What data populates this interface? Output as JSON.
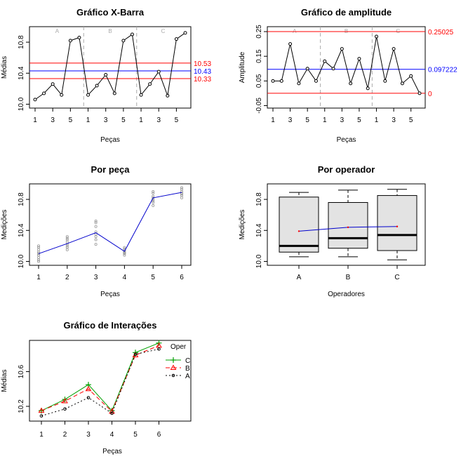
{
  "chart_data": [
    {
      "id": "xbar",
      "type": "line",
      "title": "Gráfico X-Barra",
      "xlabel": "Peças",
      "ylabel": "Médias",
      "ylim": [
        9.95,
        11.0
      ],
      "yticks": [
        "10.0",
        "10.4",
        "10.8"
      ],
      "yticks_values": [
        10.0,
        10.4,
        10.8
      ],
      "xticks": [
        "1",
        "3",
        "5",
        "1",
        "3",
        "5",
        "1",
        "3",
        "5"
      ],
      "xticks_index": [
        1,
        3,
        5,
        7,
        9,
        11,
        13,
        15,
        17
      ],
      "groups": [
        "A",
        "B",
        "C"
      ],
      "values": [
        10.06,
        10.14,
        10.26,
        10.12,
        10.82,
        10.86,
        10.12,
        10.24,
        10.38,
        10.14,
        10.82,
        10.9,
        10.12,
        10.26,
        10.42,
        10.11,
        10.84,
        10.92
      ],
      "limits": [
        {
          "name": "UCL",
          "value": 10.53,
          "label": "10.53",
          "color": "#ff0000"
        },
        {
          "name": "CL",
          "value": 10.43,
          "label": "10.43",
          "color": "#0000ff"
        },
        {
          "name": "LCL",
          "value": 10.33,
          "label": "10.33",
          "color": "#ff0000"
        }
      ]
    },
    {
      "id": "range",
      "type": "line",
      "title": "Gráfico de amplitude",
      "xlabel": "Peças",
      "ylabel": "Amplitude",
      "ylim": [
        -0.06,
        0.27
      ],
      "yticks": [
        "-0.05",
        "0.05",
        "0.15",
        "0.25"
      ],
      "yticks_values": [
        -0.05,
        0.05,
        0.15,
        0.25
      ],
      "xticks": [
        "1",
        "3",
        "5",
        "1",
        "3",
        "5",
        "1",
        "3",
        "5"
      ],
      "xticks_index": [
        1,
        3,
        5,
        7,
        9,
        11,
        13,
        15,
        17
      ],
      "groups": [
        "A",
        "B",
        "C"
      ],
      "values": [
        0.05,
        0.05,
        0.2,
        0.04,
        0.1,
        0.05,
        0.13,
        0.1,
        0.18,
        0.04,
        0.14,
        0.02,
        0.23,
        0.05,
        0.18,
        0.04,
        0.07,
        0.0
      ],
      "limits": [
        {
          "name": "UCL",
          "value": 0.25025,
          "label": "0.25025",
          "color": "#ff0000"
        },
        {
          "name": "CL",
          "value": 0.097222,
          "label": "0.097222",
          "color": "#0000ff"
        },
        {
          "name": "LCL",
          "value": 0.0,
          "label": "0",
          "color": "#ff0000"
        }
      ]
    },
    {
      "id": "bypart",
      "type": "scatter",
      "title": "Por peça",
      "xlabel": "Peças",
      "ylabel": "Medições",
      "ylim": [
        9.95,
        11.0
      ],
      "yticks": [
        "10.0",
        "10.4",
        "10.8"
      ],
      "yticks_values": [
        10.0,
        10.4,
        10.8
      ],
      "xticks": [
        "1",
        "2",
        "3",
        "4",
        "5",
        "6"
      ],
      "points": [
        {
          "x": 1,
          "ys": [
            10.0,
            10.05,
            10.08,
            10.12,
            10.15,
            10.18,
            10.2,
            10.1,
            10.02
          ]
        },
        {
          "x": 2,
          "ys": [
            10.15,
            10.18,
            10.22,
            10.25,
            10.3,
            10.32,
            10.2,
            10.28
          ]
        },
        {
          "x": 3,
          "ys": [
            10.22,
            10.28,
            10.32,
            10.38,
            10.45,
            10.5,
            10.52,
            10.35
          ]
        },
        {
          "x": 4,
          "ys": [
            10.08,
            10.1,
            10.12,
            10.14,
            10.16,
            10.18,
            10.11
          ]
        },
        {
          "x": 5,
          "ys": [
            10.72,
            10.76,
            10.8,
            10.84,
            10.88,
            10.9,
            10.78,
            10.82
          ]
        },
        {
          "x": 6,
          "ys": [
            10.82,
            10.85,
            10.88,
            10.9,
            10.93,
            10.95,
            10.87
          ]
        }
      ],
      "means": [
        10.1,
        10.23,
        10.37,
        10.13,
        10.82,
        10.89
      ]
    },
    {
      "id": "byoper",
      "type": "box",
      "title": "Por operador",
      "xlabel": "Operadores",
      "ylabel": "Medições",
      "ylim": [
        9.95,
        11.0
      ],
      "yticks": [
        "10.0",
        "10.4",
        "10.8"
      ],
      "yticks_values": [
        10.0,
        10.4,
        10.8
      ],
      "categories": [
        "A",
        "B",
        "C"
      ],
      "boxes": [
        {
          "min": 10.06,
          "q1": 10.12,
          "median": 10.2,
          "q3": 10.83,
          "max": 10.89,
          "mean": 10.39
        },
        {
          "min": 10.06,
          "q1": 10.17,
          "median": 10.3,
          "q3": 10.76,
          "max": 10.92,
          "mean": 10.44
        },
        {
          "min": 10.02,
          "q1": 10.14,
          "median": 10.34,
          "q3": 10.85,
          "max": 10.93,
          "mean": 10.45
        }
      ]
    },
    {
      "id": "interaction",
      "type": "line",
      "title": "Gráfico de Interações",
      "xlabel": "Peças",
      "ylabel": "Médias",
      "ylim": [
        10.03,
        10.96
      ],
      "yticks": [
        "10.2",
        "10.6"
      ],
      "yticks_values": [
        10.2,
        10.6
      ],
      "xticks": [
        "1",
        "2",
        "3",
        "4",
        "5",
        "6"
      ],
      "legend_title": "Oper",
      "series": [
        {
          "name": "C",
          "values": [
            10.15,
            10.28,
            10.45,
            10.15,
            10.82,
            10.93
          ],
          "color": "#00a000",
          "marker": "plus",
          "dash": ""
        },
        {
          "name": "B",
          "values": [
            10.15,
            10.26,
            10.4,
            10.14,
            10.79,
            10.9
          ],
          "color": "#ff0000",
          "marker": "triangle",
          "dash": "6,4"
        },
        {
          "name": "A",
          "values": [
            10.09,
            10.17,
            10.3,
            10.12,
            10.8,
            10.86
          ],
          "color": "#000000",
          "marker": "circle",
          "dash": "2,3"
        }
      ]
    }
  ]
}
